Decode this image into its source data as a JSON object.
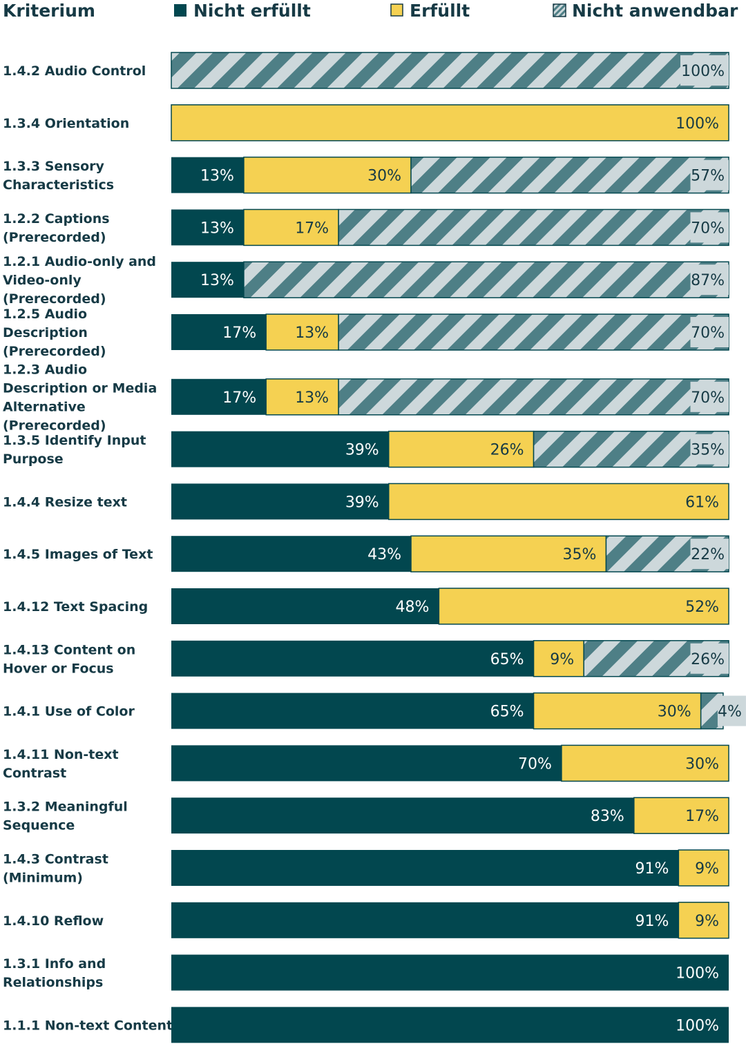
{
  "header": {
    "criterion_label": "Kriterium"
  },
  "colors": {
    "failed": "#02474f",
    "met": "#f5d152",
    "na_stripe": "#4e7f86",
    "na_bg": "#cdd8db",
    "text": "#163a45"
  },
  "chart_data": {
    "type": "bar",
    "orientation": "horizontal",
    "stacked": true,
    "unit": "%",
    "legend_position": "top",
    "categories": [
      "1.4.2 Audio Control",
      "1.3.4 Orientation",
      "1.3.3 Sensory Characteristics",
      "1.2.2 Captions (Prerecorded)",
      "1.2.1 Audio-only and Video-only (Prerecorded)",
      "1.2.5 Audio Description (Prerecorded)",
      "1.2.3 Audio Description or Media Alternative (Prerecorded)",
      "1.3.5 Identify Input Purpose",
      "1.4.4 Resize text",
      "1.4.5 Images of Text",
      "1.4.12 Text Spacing",
      "1.4.13 Content on Hover or Focus",
      "1.4.1 Use of Color",
      "1.4.11 Non-text Contrast",
      "1.3.2 Meaningful Sequence",
      "1.4.3 Contrast (Minimum)",
      "1.4.10 Reflow",
      "1.3.1 Info and Relationships",
      "1.1.1 Non-text Content"
    ],
    "category_lines": [
      [
        "1.4.2 Audio Control"
      ],
      [
        "1.3.4 Orientation"
      ],
      [
        "1.3.3 Sensory",
        "Characteristics"
      ],
      [
        "1.2.2 Captions",
        "(Prerecorded)"
      ],
      [
        "1.2.1 Audio-only and",
        "Video-only",
        "(Prerecorded)"
      ],
      [
        "1.2.5 Audio",
        "Description",
        "(Prerecorded)"
      ],
      [
        "1.2.3 Audio",
        "Description or Media",
        "Alternative",
        "(Prerecorded)"
      ],
      [
        "1.3.5 Identify Input",
        "Purpose"
      ],
      [
        "1.4.4 Resize text"
      ],
      [
        "1.4.5 Images of Text"
      ],
      [
        "1.4.12 Text Spacing"
      ],
      [
        "1.4.13 Content on",
        "Hover or Focus"
      ],
      [
        "1.4.1 Use of Color"
      ],
      [
        "1.4.11 Non-text",
        "Contrast"
      ],
      [
        "1.3.2 Meaningful",
        "Sequence"
      ],
      [
        "1.4.3 Contrast",
        "(Minimum)"
      ],
      [
        "1.4.10 Reflow"
      ],
      [
        "1.3.1 Info and",
        "Relationships"
      ],
      [
        "1.1.1 Non-text Content"
      ]
    ],
    "series": [
      {
        "name": "Nicht erfüllt",
        "key": "failed",
        "values": [
          0,
          0,
          13,
          13,
          13,
          17,
          17,
          39,
          39,
          43,
          48,
          65,
          65,
          70,
          83,
          91,
          91,
          100,
          100
        ]
      },
      {
        "name": "Erfüllt",
        "key": "met",
        "values": [
          0,
          100,
          30,
          17,
          0,
          13,
          13,
          26,
          61,
          35,
          52,
          9,
          30,
          30,
          17,
          9,
          9,
          0,
          0
        ]
      },
      {
        "name": "Nicht anwendbar",
        "key": "na",
        "values": [
          100,
          0,
          57,
          70,
          87,
          70,
          70,
          35,
          0,
          22,
          0,
          26,
          4,
          0,
          0,
          0,
          0,
          0,
          0
        ]
      }
    ],
    "xlim": [
      0,
      100
    ]
  }
}
